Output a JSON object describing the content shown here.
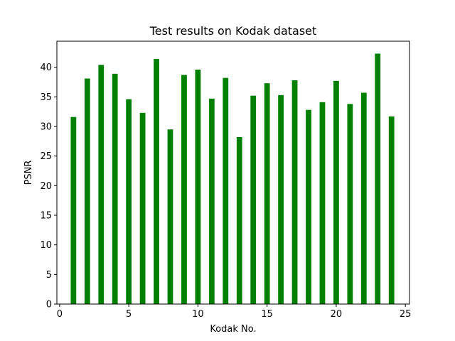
{
  "chart_data": {
    "type": "bar",
    "title": "Test results on Kodak dataset",
    "xlabel": "Kodak No.",
    "ylabel": "PSNR",
    "x": [
      1,
      2,
      3,
      4,
      5,
      6,
      7,
      8,
      9,
      10,
      11,
      12,
      13,
      14,
      15,
      16,
      17,
      18,
      19,
      20,
      21,
      22,
      23,
      24
    ],
    "values": [
      31.6,
      38.1,
      40.4,
      38.9,
      34.6,
      32.3,
      41.4,
      29.5,
      38.7,
      39.6,
      34.7,
      38.2,
      28.2,
      35.2,
      37.3,
      35.3,
      37.8,
      32.8,
      34.1,
      37.7,
      33.8,
      35.7,
      42.3,
      31.7
    ],
    "bar_width": 0.4,
    "xlim": [
      -0.2,
      25.3
    ],
    "ylim": [
      0,
      44.4
    ],
    "xticks": [
      "0",
      "5",
      "10",
      "15",
      "20",
      "25"
    ],
    "yticks": [
      "0",
      "5",
      "10",
      "15",
      "20",
      "25",
      "30",
      "35",
      "40"
    ],
    "bar_color": "#008000",
    "grid": false
  }
}
